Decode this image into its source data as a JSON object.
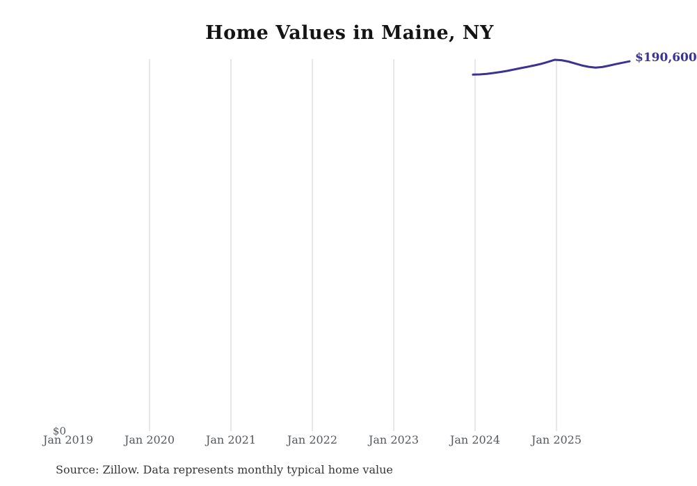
{
  "title": "Home Values in Maine, NY",
  "source_note": "Source: Zillow. Data represents monthly typical home value",
  "y_axis": {
    "zero_label": "$0"
  },
  "end_value_label": "$190,600",
  "colors": {
    "line": "#3a3391",
    "grid": "#cfcfcf",
    "axis_text": "#55585c",
    "title_text": "#141414",
    "end_label_text": "#3a3391",
    "background": "#ffffff"
  },
  "x_tick_labels": [
    "Jan 2019",
    "Jan 2020",
    "Jan 2021",
    "Jan 2022",
    "Jan 2023",
    "Jan 2024",
    "Jan 2025"
  ],
  "chart_data": {
    "type": "line",
    "title": "Home Values in Maine, NY",
    "xlabel": "",
    "ylabel": "",
    "ylim": [
      0,
      195000
    ],
    "grid": "vertical-only",
    "legend": "none",
    "x_axis_ticks": [
      "Jan 2019",
      "Jan 2020",
      "Jan 2021",
      "Jan 2022",
      "Jan 2023",
      "Jan 2024",
      "Jan 2025"
    ],
    "series_name": "Typical home value (monthly)",
    "x": [
      "Jan 2024",
      "Feb 2024",
      "Mar 2024",
      "Apr 2024",
      "May 2024",
      "Jun 2024",
      "Jul 2024",
      "Aug 2024",
      "Sep 2024",
      "Oct 2024",
      "Nov 2024",
      "Dec 2024",
      "Jan 2025",
      "Feb 2025",
      "Mar 2025",
      "Apr 2025",
      "May 2025",
      "Jun 2025",
      "Jul 2025",
      "Aug 2025",
      "Sep 2025",
      "Oct 2025",
      "Nov 2025",
      "Dec 2025"
    ],
    "values": [
      183800,
      183900,
      184200,
      184600,
      185100,
      185700,
      186400,
      187100,
      187800,
      188500,
      189300,
      190300,
      191400,
      191200,
      190500,
      189500,
      188500,
      187800,
      187400,
      187700,
      188400,
      189200,
      189900,
      190600
    ],
    "end_value": 190600,
    "end_value_label": "$190,600",
    "annotations": [
      "$0 baseline label at left axis",
      "data series only spans Jan 2024 onward"
    ]
  }
}
